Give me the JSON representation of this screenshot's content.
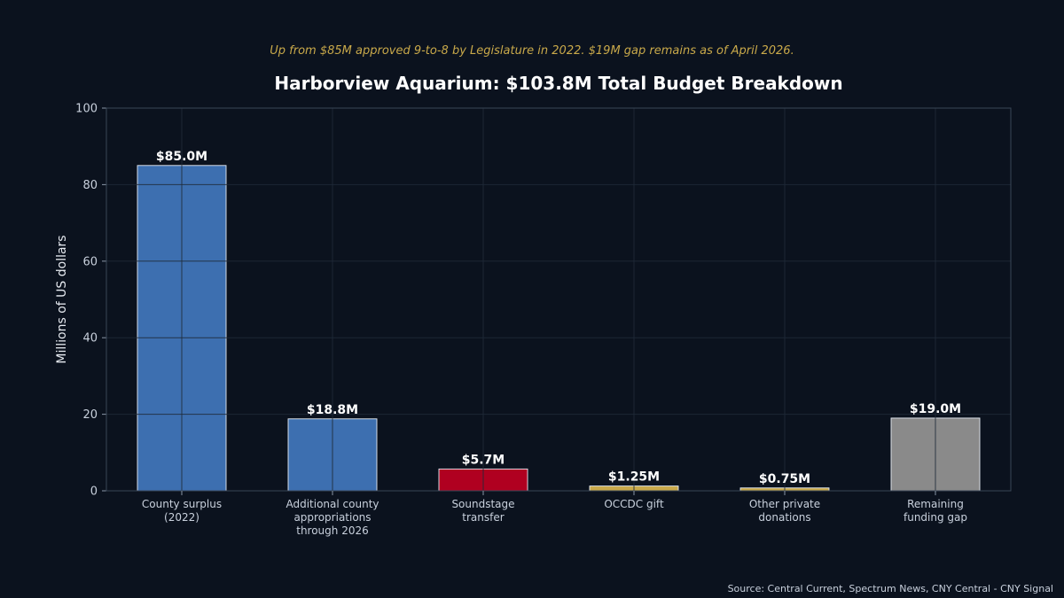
{
  "chart_data": {
    "type": "bar",
    "title": "Harborview Aquarium: $103.8M Total Budget Breakdown",
    "subtitle": "Up from $85M approved 9-to-8 by Legislature in 2022. $19M gap remains as of April 2026.",
    "ylabel": "Millions of US dollars",
    "xlabel": "",
    "ylim": [
      0,
      100
    ],
    "yticks": [
      0,
      20,
      40,
      60,
      80,
      100
    ],
    "grid": true,
    "categories": [
      [
        "County surplus",
        "(2022)"
      ],
      [
        "Additional county",
        "appropriations",
        "through 2026"
      ],
      [
        "Soundstage",
        "transfer"
      ],
      [
        "OCCDC gift"
      ],
      [
        "Other private",
        "donations"
      ],
      [
        "Remaining",
        "funding gap"
      ]
    ],
    "values": [
      85.0,
      18.8,
      5.7,
      1.25,
      0.75,
      19.0
    ],
    "data_labels": [
      "$85.0M",
      "$18.8M",
      "$5.7M",
      "$1.25M",
      "$0.75M",
      "$19.0M"
    ],
    "colors": [
      "#3d6fb0",
      "#3d6fb0",
      "#b00020",
      "#c9a94a",
      "#c9a94a",
      "#8a8a8a"
    ]
  },
  "source": "Source: Central Current, Spectrum News, CNY Central - CNY Signal",
  "colors": {
    "background": "#0b121e",
    "grid": "#1f2a38",
    "spine": "#3a4656",
    "subtitle": "#c9a94a"
  }
}
